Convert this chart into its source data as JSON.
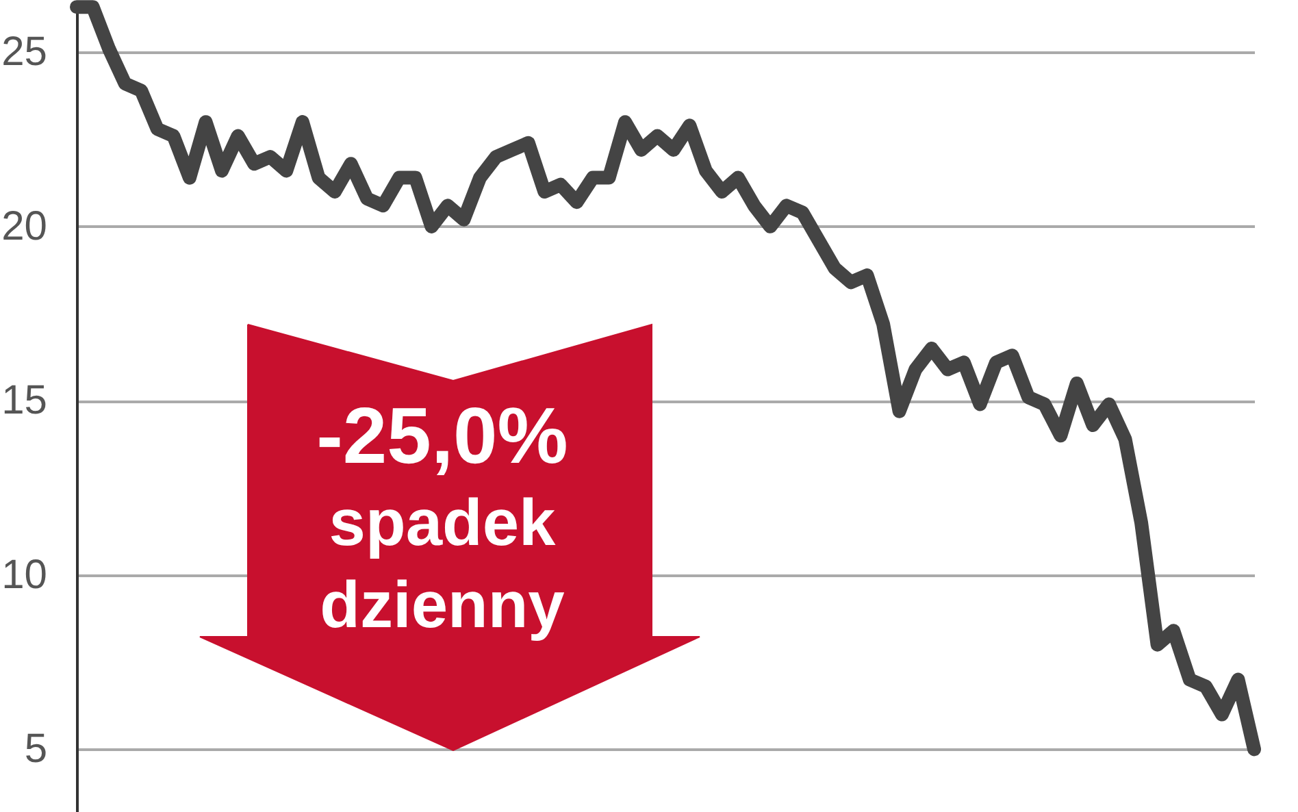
{
  "chart_data": {
    "type": "line",
    "categories": [
      null,
      null,
      null,
      null,
      null,
      null,
      null,
      null,
      null,
      null,
      null,
      null,
      null,
      null,
      null,
      null,
      null,
      null,
      null,
      null,
      null,
      null,
      null,
      null,
      null,
      null,
      null,
      null,
      null,
      null,
      null,
      null,
      null,
      null,
      null,
      null,
      null,
      null,
      null,
      null,
      null,
      null,
      null,
      null,
      null,
      null,
      null,
      null,
      null,
      null,
      null,
      null,
      null,
      null,
      null,
      null,
      null,
      null,
      null,
      null,
      null,
      null,
      null,
      null,
      null,
      null,
      null,
      null,
      null,
      null,
      null,
      null,
      null,
      null
    ],
    "values": [
      26.3,
      26.3,
      25.1,
      24.1,
      23.9,
      22.8,
      22.6,
      21.4,
      23.0,
      21.6,
      22.6,
      21.8,
      22.0,
      21.6,
      23.0,
      21.4,
      21.0,
      21.8,
      20.8,
      20.6,
      21.4,
      21.4,
      20.0,
      20.6,
      20.2,
      21.4,
      22.0,
      22.2,
      22.4,
      21.0,
      21.2,
      20.7,
      21.4,
      21.4,
      23.0,
      22.2,
      22.6,
      22.2,
      22.9,
      21.6,
      21.0,
      21.4,
      20.6,
      20.0,
      20.6,
      20.4,
      19.6,
      18.8,
      18.4,
      18.6,
      17.2,
      14.7,
      15.9,
      16.5,
      15.9,
      16.1,
      14.9,
      16.1,
      16.3,
      15.1,
      14.9,
      14.0,
      15.5,
      14.3,
      14.9,
      13.9,
      11.5,
      8.0,
      8.4,
      7.0,
      6.8,
      6.0,
      7.0,
      5.0
    ],
    "color": "#444444",
    "ylim": [
      3.2,
      26.5
    ],
    "yticks": [
      5,
      10,
      15,
      20,
      25
    ],
    "grid": "y",
    "annotations": [
      "-25,0%",
      "spadek",
      "dzienny"
    ]
  }
}
